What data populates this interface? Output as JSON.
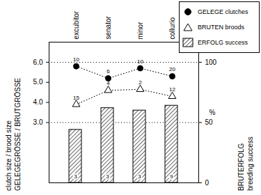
{
  "chart_data": {
    "type": "bar",
    "categories": [
      "excubitor",
      "senator",
      "minor",
      "collurio"
    ],
    "ylabel": "clutch size / brood size",
    "ylabel_de": "GELEGEGRÖSSE / BRUTGRÖSSE",
    "y2label": "breeding success",
    "y2label_de": "BRUTERFOLG",
    "y2unit": "%",
    "ylim": [
      0,
      7
    ],
    "yticks": [
      3,
      4,
      5,
      6
    ],
    "y2lim": [
      0,
      116.7
    ],
    "y2ticks": [
      0,
      50,
      100
    ],
    "grid": true,
    "legend": "top-right",
    "series": [
      {
        "name": "GELEGE clutches",
        "type": "line",
        "marker": "circle",
        "line_style": "dotted",
        "color": "#000000",
        "values": [
          5.8,
          5.2,
          5.7,
          5.3
        ],
        "n": [
          10,
          6,
          10,
          20
        ]
      },
      {
        "name": "BRUTEN broods",
        "type": "line",
        "marker": "triangle",
        "line_style": "dotted",
        "color": "#000000",
        "values": [
          3.9,
          4.6,
          4.65,
          4.3
        ],
        "n": [
          15,
          4,
          2,
          12
        ]
      },
      {
        "name": "ERFOLG success",
        "type": "bar",
        "axis": "y2",
        "color": "#000000",
        "values": [
          44,
          62,
          60,
          64
        ],
        "n": [
          3,
          3,
          3,
          9
        ]
      }
    ]
  }
}
